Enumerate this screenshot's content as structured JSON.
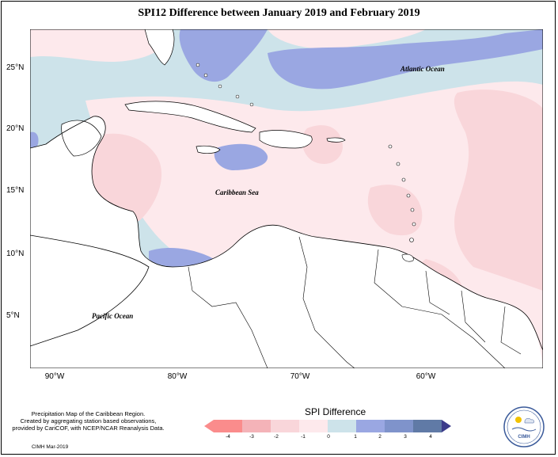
{
  "title": "SPI12 Difference between January 2019 and February 2019",
  "y_ticks": [
    "25°N",
    "20°N",
    "15°N",
    "10°N",
    "5°N"
  ],
  "x_ticks": [
    "90°W",
    "80°W",
    "70°W",
    "60°W"
  ],
  "ocean_labels": {
    "atlantic": "Atlantic Ocean",
    "caribbean": "Caribbean Sea",
    "pacific": "Pacific Ocean"
  },
  "caption": {
    "line1": "Precipitation Map of the Caribbean Region.",
    "line2": "Created by aggregating station based observations,",
    "line3": "provided by CariCOF, with NCEP/NCAR Reanalysis Data."
  },
  "credit": "CIMH Mar-2019",
  "legend": {
    "title": "SPI Difference",
    "ticks": [
      "-4",
      "-3",
      "-2",
      "-1",
      "0",
      "1",
      "2",
      "3",
      "4"
    ],
    "colors": [
      "#fa8c8c",
      "#f4b3b8",
      "#f9d6da",
      "#fde9ec",
      "#cde3ea",
      "#9aa7e2",
      "#7f93cb",
      "#607aa6",
      "#3b3b8a"
    ]
  },
  "logo_text": "CIMH",
  "colors": {
    "neutral_blue": "#cde3ea",
    "light_pink": "#fde9ec",
    "pink": "#f9d6da",
    "strong_pink": "#f4b3b8",
    "blue": "#9aa7e2"
  }
}
